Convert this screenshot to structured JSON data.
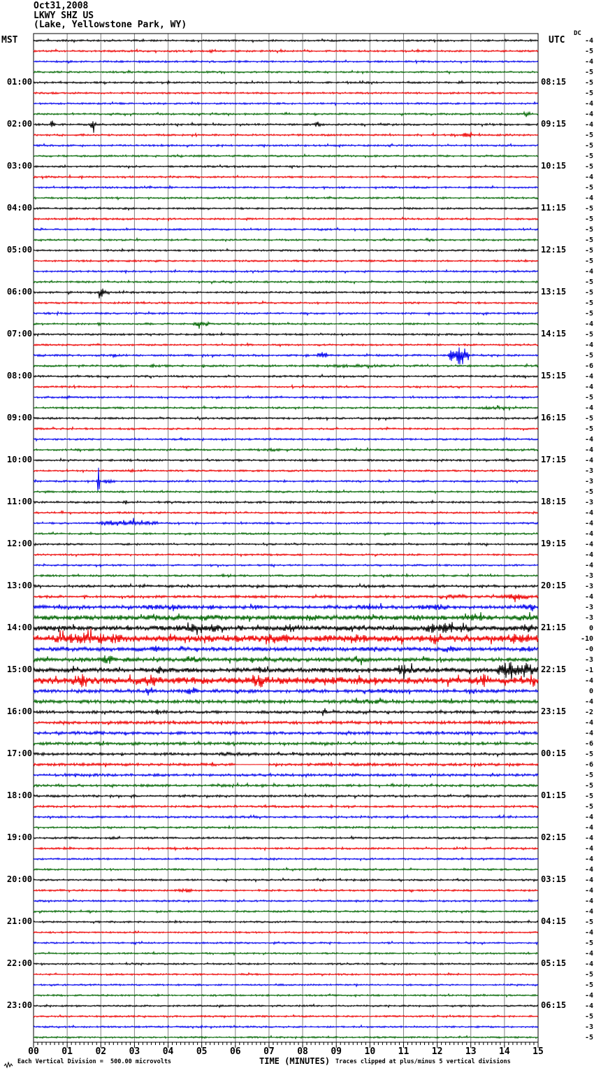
{
  "header": {
    "date": "Oct31,2008",
    "station": "LKWY SHZ US",
    "location": "(Lake, Yellowstone Park, WY)"
  },
  "axes": {
    "left_tz": "MST",
    "right_tz": "UTC",
    "dc_label": "DC",
    "x_title": "TIME (MINUTES)",
    "x_tick_labels": [
      "00",
      "01",
      "02",
      "03",
      "04",
      "05",
      "06",
      "07",
      "08",
      "09",
      "10",
      "11",
      "12",
      "13",
      "14",
      "15"
    ]
  },
  "footer": {
    "division_note": "Each Vertical Division =  500.00 microvolts",
    "clip_note": "Traces clipped at plus/minus 5 vertical divisions"
  },
  "colors": {
    "trace_cycle": [
      "#000000",
      "#ee0000",
      "#0000ee",
      "#006600"
    ],
    "grid": "#808080",
    "frame": "#000000"
  },
  "chart_data": {
    "type": "line",
    "subtype": "helicorder",
    "minutes_per_line": 15,
    "x_range": [
      0,
      15
    ],
    "traces": [
      {
        "l": "",
        "r": "",
        "dc": "-4",
        "n": 1.3,
        "ev": []
      },
      {
        "l": "",
        "r": "",
        "dc": "-5",
        "n": 1.3,
        "ev": [
          [
            5.2,
            0.15,
            3
          ]
        ]
      },
      {
        "l": "",
        "r": "",
        "dc": "-4",
        "n": 1.3,
        "ev": []
      },
      {
        "l": "",
        "r": "",
        "dc": "-5",
        "n": 1.3,
        "ev": []
      },
      {
        "l": "01:00",
        "r": "08:15",
        "dc": "-5",
        "n": 1.3,
        "ev": [
          [
            12.6,
            0.2,
            4
          ]
        ]
      },
      {
        "l": "",
        "r": "",
        "dc": "-5",
        "n": 1.3,
        "ev": []
      },
      {
        "l": "",
        "r": "",
        "dc": "-4",
        "n": 1.3,
        "ev": [
          [
            2.6,
            0.15,
            4
          ]
        ]
      },
      {
        "l": "",
        "r": "",
        "dc": "-4",
        "n": 1.3,
        "ev": [
          [
            14.55,
            0.25,
            5
          ]
        ]
      },
      {
        "l": "02:00",
        "r": "09:15",
        "dc": "-4",
        "n": 1.4,
        "ev": [
          [
            0.45,
            0.2,
            6
          ],
          [
            1.65,
            0.25,
            7
          ],
          [
            8.35,
            0.2,
            5
          ]
        ]
      },
      {
        "l": "",
        "r": "",
        "dc": "-5",
        "n": 1.3,
        "ev": [
          [
            12.75,
            0.3,
            5
          ]
        ]
      },
      {
        "l": "",
        "r": "",
        "dc": "-5",
        "n": 1.3,
        "ev": []
      },
      {
        "l": "",
        "r": "",
        "dc": "-5",
        "n": 1.3,
        "ev": []
      },
      {
        "l": "03:00",
        "r": "10:15",
        "dc": "-5",
        "n": 1.3,
        "ev": []
      },
      {
        "l": "",
        "r": "",
        "dc": "-4",
        "n": 1.3,
        "ev": []
      },
      {
        "l": "",
        "r": "",
        "dc": "-5",
        "n": 1.3,
        "ev": []
      },
      {
        "l": "",
        "r": "",
        "dc": "-4",
        "n": 1.3,
        "ev": []
      },
      {
        "l": "04:00",
        "r": "11:15",
        "dc": "-5",
        "n": 1.3,
        "ev": []
      },
      {
        "l": "",
        "r": "",
        "dc": "-5",
        "n": 1.3,
        "ev": []
      },
      {
        "l": "",
        "r": "",
        "dc": "-5",
        "n": 1.3,
        "ev": []
      },
      {
        "l": "",
        "r": "",
        "dc": "-5",
        "n": 1.3,
        "ev": []
      },
      {
        "l": "05:00",
        "r": "12:15",
        "dc": "-5",
        "n": 1.3,
        "ev": []
      },
      {
        "l": "",
        "r": "",
        "dc": "-5",
        "n": 1.3,
        "ev": []
      },
      {
        "l": "",
        "r": "",
        "dc": "-4",
        "n": 1.3,
        "ev": []
      },
      {
        "l": "",
        "r": "",
        "dc": "-5",
        "n": 1.3,
        "ev": []
      },
      {
        "l": "06:00",
        "r": "13:15",
        "dc": "-5",
        "n": 1.4,
        "ev": [
          [
            1.8,
            0.5,
            6
          ]
        ]
      },
      {
        "l": "",
        "r": "",
        "dc": "-5",
        "n": 1.3,
        "ev": []
      },
      {
        "l": "",
        "r": "",
        "dc": "-5",
        "n": 1.3,
        "ev": []
      },
      {
        "l": "",
        "r": "",
        "dc": "-4",
        "n": 1.3,
        "ev": [
          [
            1.9,
            0.1,
            4
          ],
          [
            4.7,
            0.6,
            4
          ]
        ]
      },
      {
        "l": "07:00",
        "r": "14:15",
        "dc": "-5",
        "n": 1.3,
        "ev": []
      },
      {
        "l": "",
        "r": "",
        "dc": "-4",
        "n": 1.3,
        "ev": []
      },
      {
        "l": "",
        "r": "",
        "dc": "-5",
        "n": 1.4,
        "ev": [
          [
            2.3,
            0.2,
            3
          ],
          [
            7.4,
            0.2,
            3
          ],
          [
            8.4,
            0.4,
            5
          ],
          [
            12.3,
            0.7,
            14
          ]
        ]
      },
      {
        "l": "",
        "r": "",
        "dc": "-6",
        "n": 1.5,
        "ev": [
          [
            3.5,
            0.1,
            3
          ],
          [
            7.5,
            4.0,
            2.2
          ]
        ]
      },
      {
        "l": "08:00",
        "r": "15:15",
        "dc": "-4",
        "n": 1.4,
        "ev": []
      },
      {
        "l": "",
        "r": "",
        "dc": "-4",
        "n": 1.3,
        "ev": [
          [
            11.3,
            0.3,
            2.2
          ]
        ]
      },
      {
        "l": "",
        "r": "",
        "dc": "-5",
        "n": 1.3,
        "ev": [
          [
            0.9,
            0.3,
            2.5
          ]
        ]
      },
      {
        "l": "",
        "r": "",
        "dc": "-4",
        "n": 1.4,
        "ev": [
          [
            13.0,
            1.5,
            2.2
          ]
        ]
      },
      {
        "l": "09:00",
        "r": "16:15",
        "dc": "-5",
        "n": 1.4,
        "ev": []
      },
      {
        "l": "",
        "r": "",
        "dc": "-5",
        "n": 1.3,
        "ev": []
      },
      {
        "l": "",
        "r": "",
        "dc": "-4",
        "n": 1.3,
        "ev": [
          [
            13.9,
            0.3,
            2.5
          ]
        ]
      },
      {
        "l": "",
        "r": "",
        "dc": "-4",
        "n": 1.4,
        "ev": [
          [
            6.3,
            1.5,
            2
          ]
        ]
      },
      {
        "l": "10:00",
        "r": "17:15",
        "dc": "-4",
        "n": 1.4,
        "ev": [
          [
            2.8,
            0.15,
            2.5
          ]
        ]
      },
      {
        "l": "",
        "r": "",
        "dc": "-3",
        "n": 1.3,
        "ev": [
          [
            2.8,
            0.2,
            3
          ]
        ]
      },
      {
        "l": "",
        "r": "",
        "dc": "-3",
        "n": 1.3,
        "ev": [
          [
            1.88,
            0.1,
            23
          ],
          [
            2.0,
            0.4,
            4
          ]
        ]
      },
      {
        "l": "",
        "r": "",
        "dc": "-5",
        "n": 1.3,
        "ev": []
      },
      {
        "l": "11:00",
        "r": "18:15",
        "dc": "-3",
        "n": 1.4,
        "ev": [
          [
            2.65,
            0.15,
            4
          ]
        ]
      },
      {
        "l": "",
        "r": "",
        "dc": "-4",
        "n": 1.3,
        "ev": []
      },
      {
        "l": "",
        "r": "",
        "dc": "-4",
        "n": 1.3,
        "ev": [
          [
            1.7,
            2.2,
            5
          ]
        ]
      },
      {
        "l": "",
        "r": "",
        "dc": "-4",
        "n": 1.3,
        "ev": []
      },
      {
        "l": "12:00",
        "r": "19:15",
        "dc": "-4",
        "n": 1.3,
        "ev": []
      },
      {
        "l": "",
        "r": "",
        "dc": "-4",
        "n": 1.3,
        "ev": []
      },
      {
        "l": "",
        "r": "",
        "dc": "-4",
        "n": 1.3,
        "ev": []
      },
      {
        "l": "",
        "r": "",
        "dc": "-3",
        "n": 1.4,
        "ev": [
          [
            5.2,
            1.0,
            2.2
          ]
        ]
      },
      {
        "l": "13:00",
        "r": "20:15",
        "dc": "-3",
        "n": 1.8,
        "ev": [
          [
            11.7,
            0.3,
            3
          ],
          [
            13.5,
            0.3,
            2.5
          ]
        ]
      },
      {
        "l": "",
        "r": "",
        "dc": "-4",
        "n": 1.8,
        "ev": [
          [
            12.0,
            1.2,
            3.5
          ],
          [
            13.8,
            1.2,
            4.5
          ]
        ]
      },
      {
        "l": "",
        "r": "",
        "dc": "-3",
        "n": 2.5,
        "ev": [
          [
            2.8,
            2.2,
            4
          ],
          [
            5.2,
            0.15,
            9
          ],
          [
            6.3,
            0.6,
            4
          ],
          [
            9.4,
            1.2,
            4.5
          ],
          [
            11.3,
            1.2,
            5
          ],
          [
            14.4,
            0.6,
            5
          ]
        ]
      },
      {
        "l": "",
        "r": "",
        "dc": "-3",
        "n": 3.5,
        "ev": [
          [
            3.2,
            0.6,
            6
          ],
          [
            4.5,
            1.5,
            4.5
          ],
          [
            7.0,
            2.0,
            5
          ],
          [
            11.0,
            0.8,
            4.5
          ],
          [
            12.7,
            0.8,
            6
          ],
          [
            14.2,
            0.8,
            5
          ]
        ]
      },
      {
        "l": "14:00",
        "r": "21:15",
        "dc": "0",
        "n": 3.5,
        "ev": [
          [
            4.0,
            1.8,
            7
          ],
          [
            7.3,
            0.8,
            6
          ],
          [
            11.4,
            2.0,
            9
          ],
          [
            14.4,
            0.6,
            6
          ]
        ]
      },
      {
        "l": "",
        "r": "",
        "dc": "-10",
        "n": 5,
        "ev": [
          [
            0.2,
            2.8,
            9
          ],
          [
            4.0,
            0.8,
            7
          ],
          [
            6.8,
            0.9,
            10
          ],
          [
            9.3,
            0.7,
            7
          ],
          [
            11.7,
            0.6,
            9
          ],
          [
            13.9,
            1.1,
            8
          ]
        ]
      },
      {
        "l": "",
        "r": "",
        "dc": "-0",
        "n": 3,
        "ev": [
          [
            3.4,
            0.5,
            5
          ],
          [
            7.2,
            0.5,
            4
          ],
          [
            12.0,
            0.8,
            5
          ],
          [
            14.6,
            0.4,
            5
          ]
        ]
      },
      {
        "l": "",
        "r": "",
        "dc": "-3",
        "n": 3,
        "ev": [
          [
            2.0,
            0.4,
            8
          ],
          [
            4.2,
            0.9,
            5
          ],
          [
            7.2,
            0.6,
            4
          ],
          [
            9.2,
            1.0,
            4.5
          ]
        ]
      },
      {
        "l": "15:00",
        "r": "22:15",
        "dc": "-1",
        "n": 3.5,
        "ev": [
          [
            3.5,
            0.5,
            6
          ],
          [
            6.5,
            0.5,
            5
          ],
          [
            10.6,
            0.9,
            8
          ],
          [
            13.6,
            1.5,
            13
          ]
        ]
      },
      {
        "l": "",
        "r": "",
        "dc": "-4",
        "n": 5,
        "ev": [
          [
            1.1,
            0.6,
            10
          ],
          [
            3.2,
            0.6,
            10
          ],
          [
            6.3,
            0.8,
            10
          ],
          [
            9.4,
            0.5,
            9
          ],
          [
            13.1,
            0.5,
            10
          ],
          [
            14.7,
            0.3,
            9
          ]
        ]
      },
      {
        "l": "",
        "r": "",
        "dc": "0",
        "n": 2.5,
        "ev": [
          [
            3.3,
            0.3,
            7
          ],
          [
            4.5,
            0.4,
            6
          ],
          [
            9.0,
            3.0,
            3.5
          ]
        ]
      },
      {
        "l": "",
        "r": "",
        "dc": "-4",
        "n": 2.5,
        "ev": [
          [
            9.0,
            1.8,
            3.5
          ]
        ]
      },
      {
        "l": "16:00",
        "r": "23:15",
        "dc": "-2",
        "n": 2,
        "ev": [
          [
            3.6,
            0.15,
            5
          ],
          [
            8.55,
            0.2,
            7
          ],
          [
            9.8,
            0.2,
            5
          ]
        ]
      },
      {
        "l": "",
        "r": "",
        "dc": "-4",
        "n": 2.2,
        "ev": []
      },
      {
        "l": "",
        "r": "",
        "dc": "-4",
        "n": 2.1,
        "ev": [
          [
            0.5,
            0.4,
            3
          ]
        ]
      },
      {
        "l": "",
        "r": "",
        "dc": "-6",
        "n": 2,
        "ev": []
      },
      {
        "l": "17:00",
        "r": "00:15",
        "dc": "-5",
        "n": 1.9,
        "ev": [
          [
            5.0,
            2.0,
            2.5
          ]
        ]
      },
      {
        "l": "",
        "r": "",
        "dc": "-6",
        "n": 2,
        "ev": [
          [
            6.0,
            1.0,
            0.2
          ]
        ]
      },
      {
        "l": "",
        "r": "",
        "dc": "-5",
        "n": 1.9,
        "ev": [
          [
            7.9,
            0.4,
            3
          ]
        ]
      },
      {
        "l": "",
        "r": "",
        "dc": "-5",
        "n": 1.7,
        "ev": []
      },
      {
        "l": "18:00",
        "r": "01:15",
        "dc": "-5",
        "n": 1.6,
        "ev": [
          [
            2.9,
            0.15,
            2.5
          ]
        ]
      },
      {
        "l": "",
        "r": "",
        "dc": "-5",
        "n": 1.5,
        "ev": []
      },
      {
        "l": "",
        "r": "",
        "dc": "-4",
        "n": 1.4,
        "ev": []
      },
      {
        "l": "",
        "r": "",
        "dc": "-4",
        "n": 1.4,
        "ev": []
      },
      {
        "l": "19:00",
        "r": "02:15",
        "dc": "-4",
        "n": 1.4,
        "ev": []
      },
      {
        "l": "",
        "r": "",
        "dc": "-4",
        "n": 1.3,
        "ev": []
      },
      {
        "l": "",
        "r": "",
        "dc": "-4",
        "n": 1.3,
        "ev": []
      },
      {
        "l": "",
        "r": "",
        "dc": "-4",
        "n": 1.3,
        "ev": []
      },
      {
        "l": "20:00",
        "r": "03:15",
        "dc": "-4",
        "n": 1.3,
        "ev": [
          [
            8.5,
            0.15,
            2.5
          ]
        ]
      },
      {
        "l": "",
        "r": "",
        "dc": "-4",
        "n": 1.3,
        "ev": [
          [
            4.2,
            0.6,
            3.5
          ]
        ]
      },
      {
        "l": "",
        "r": "",
        "dc": "-4",
        "n": 1.3,
        "ev": []
      },
      {
        "l": "",
        "r": "",
        "dc": "-4",
        "n": 1.3,
        "ev": []
      },
      {
        "l": "21:00",
        "r": "04:15",
        "dc": "-5",
        "n": 1.3,
        "ev": []
      },
      {
        "l": "",
        "r": "",
        "dc": "-4",
        "n": 1.2,
        "ev": []
      },
      {
        "l": "",
        "r": "",
        "dc": "-5",
        "n": 1.2,
        "ev": [
          [
            2.9,
            0.2,
            2.5
          ]
        ]
      },
      {
        "l": "",
        "r": "",
        "dc": "-4",
        "n": 1.2,
        "ev": []
      },
      {
        "l": "22:00",
        "r": "05:15",
        "dc": "-4",
        "n": 1.2,
        "ev": []
      },
      {
        "l": "",
        "r": "",
        "dc": "-5",
        "n": 1.2,
        "ev": []
      },
      {
        "l": "",
        "r": "",
        "dc": "-5",
        "n": 1.2,
        "ev": []
      },
      {
        "l": "",
        "r": "",
        "dc": "-4",
        "n": 1.2,
        "ev": []
      },
      {
        "l": "23:00",
        "r": "06:15",
        "dc": "-4",
        "n": 1.2,
        "ev": []
      },
      {
        "l": "",
        "r": "",
        "dc": "-5",
        "n": 1.2,
        "ev": []
      },
      {
        "l": "",
        "r": "",
        "dc": "-3",
        "n": 1.2,
        "ev": []
      },
      {
        "l": "",
        "r": "",
        "dc": "-5",
        "n": 1.2,
        "ev": []
      }
    ]
  }
}
